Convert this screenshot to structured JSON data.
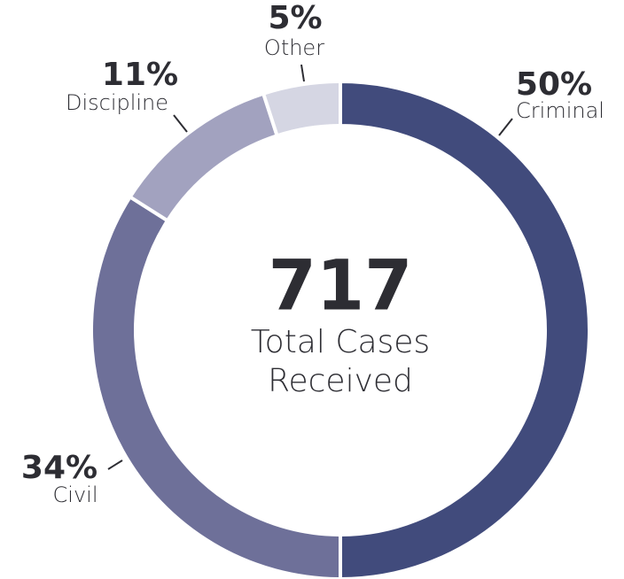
{
  "chart_data": {
    "type": "pie",
    "donut": true,
    "categories": [
      "Criminal",
      "Civil",
      "Discipline",
      "Other"
    ],
    "values": [
      50,
      34,
      11,
      5
    ],
    "value_labels": [
      "50%",
      "34%",
      "11%",
      "5%"
    ],
    "colors": [
      "#414b7c",
      "#6e7099",
      "#a2a2bf",
      "#d5d6e3"
    ],
    "total": 717,
    "total_label": [
      "Total Cases",
      "Received"
    ]
  }
}
